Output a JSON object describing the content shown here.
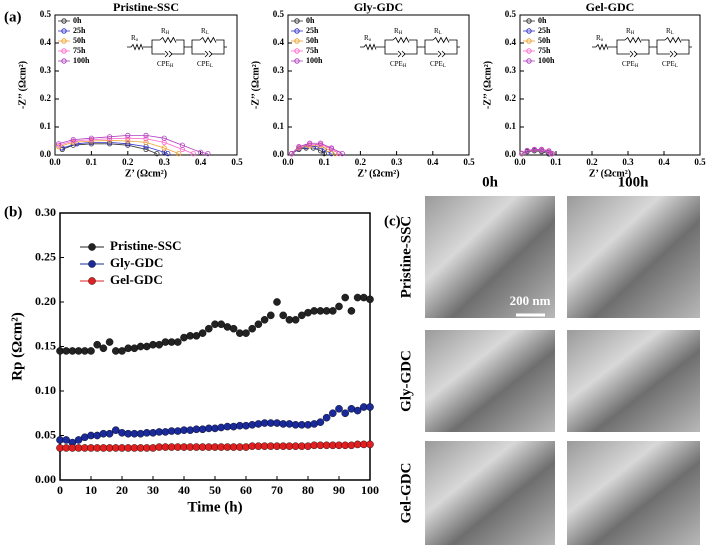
{
  "panel_labels": [
    "(a)",
    "(b)",
    "(c)"
  ],
  "circuit": {
    "labels": [
      {
        "main": "R",
        "sub": "o"
      },
      {
        "main": "R",
        "sub": "H"
      },
      {
        "main": "R",
        "sub": "L"
      },
      {
        "main": "CPE",
        "sub": "H"
      },
      {
        "main": "CPE",
        "sub": "L"
      }
    ]
  },
  "sem": {
    "columns": [
      "0h",
      "100h"
    ],
    "rows": [
      "Pristine-SSC",
      "Gly-GDC",
      "Gel-GDC"
    ],
    "scale_bar": "200 nm"
  },
  "chart_data": [
    {
      "type": "line",
      "title": "Pristine-SSC",
      "xlabel": "Z’ (Ωcm²)",
      "ylabel": "-Z’’ (Ωcm²)",
      "xlim": [
        0,
        0.5
      ],
      "xticks": [
        {
          "value": 0,
          "label": "0.0"
        },
        0.1,
        0.2,
        0.3,
        0.4,
        0.5
      ],
      "ylim": [
        0,
        0.5
      ],
      "yticks": [
        {
          "value": 0,
          "label": "0.0"
        },
        0.1,
        0.2,
        0.3,
        0.4,
        0.5
      ],
      "series": [
        {
          "name": "0h",
          "color": "#333333",
          "x": [
            0.02,
            0.05,
            0.1,
            0.15,
            0.2,
            0.25,
            0.28
          ],
          "values": [
            0.02,
            0.035,
            0.04,
            0.04,
            0.035,
            0.02,
            0.005
          ]
        },
        {
          "name": "25h",
          "color": "#3333cc",
          "x": [
            0.02,
            0.06,
            0.1,
            0.15,
            0.2,
            0.25,
            0.3,
            0.31
          ],
          "values": [
            0.025,
            0.04,
            0.045,
            0.045,
            0.04,
            0.03,
            0.01,
            0.005
          ]
        },
        {
          "name": "50h",
          "color": "#f0a030",
          "x": [
            0.01,
            0.05,
            0.1,
            0.15,
            0.2,
            0.25,
            0.3,
            0.34
          ],
          "values": [
            0.03,
            0.045,
            0.05,
            0.052,
            0.05,
            0.045,
            0.025,
            0.005
          ]
        },
        {
          "name": "75h",
          "color": "#ff66cc",
          "x": [
            0.01,
            0.05,
            0.1,
            0.15,
            0.2,
            0.25,
            0.3,
            0.35,
            0.38
          ],
          "values": [
            0.035,
            0.05,
            0.055,
            0.058,
            0.06,
            0.058,
            0.045,
            0.02,
            0.005
          ]
        },
        {
          "name": "100h",
          "color": "#b040c0",
          "x": [
            0.01,
            0.05,
            0.1,
            0.15,
            0.2,
            0.25,
            0.3,
            0.35,
            0.4,
            0.42
          ],
          "values": [
            0.04,
            0.055,
            0.06,
            0.065,
            0.07,
            0.07,
            0.06,
            0.035,
            0.01,
            0.005
          ]
        }
      ]
    },
    {
      "type": "line",
      "title": "Gly-GDC",
      "xlabel": "Z’ (Ωcm²)",
      "ylabel": "-Z’’ (Ωcm²)",
      "xlim": [
        0,
        0.5
      ],
      "xticks": [
        {
          "value": 0,
          "label": "0.0"
        },
        0.1,
        0.2,
        0.3,
        0.4,
        0.5
      ],
      "ylim": [
        0,
        0.5
      ],
      "yticks": [
        {
          "value": 0,
          "label": "0.0"
        },
        0.1,
        0.2,
        0.3,
        0.4,
        0.5
      ],
      "series": [
        {
          "name": "0h",
          "color": "#333333",
          "x": [
            0.01,
            0.03,
            0.05,
            0.07,
            0.09,
            0.1
          ],
          "values": [
            0.005,
            0.02,
            0.025,
            0.025,
            0.015,
            0.005
          ]
        },
        {
          "name": "25h",
          "color": "#3333cc",
          "x": [
            0.01,
            0.03,
            0.05,
            0.08,
            0.1,
            0.12
          ],
          "values": [
            0.005,
            0.022,
            0.03,
            0.03,
            0.018,
            0.005
          ]
        },
        {
          "name": "50h",
          "color": "#f0a030",
          "x": [
            0.01,
            0.03,
            0.06,
            0.09,
            0.11,
            0.13
          ],
          "values": [
            0.005,
            0.025,
            0.033,
            0.033,
            0.02,
            0.005
          ]
        },
        {
          "name": "75h",
          "color": "#ff66cc",
          "x": [
            0.01,
            0.03,
            0.06,
            0.09,
            0.12,
            0.14
          ],
          "values": [
            0.005,
            0.028,
            0.038,
            0.038,
            0.022,
            0.005
          ]
        },
        {
          "name": "100h",
          "color": "#b040c0",
          "x": [
            0.01,
            0.03,
            0.06,
            0.09,
            0.12,
            0.15
          ],
          "values": [
            0.005,
            0.03,
            0.042,
            0.042,
            0.025,
            0.005
          ]
        }
      ]
    },
    {
      "type": "line",
      "title": "Gel-GDC",
      "xlabel": "Z’ (Ωcm²)",
      "ylabel": "-Z’’ (Ωcm²)",
      "xlim": [
        0,
        0.5
      ],
      "xticks": [
        {
          "value": 0,
          "label": "0.0"
        },
        0.1,
        0.2,
        0.3,
        0.4,
        0.5
      ],
      "ylim": [
        0,
        0.5
      ],
      "yticks": [
        {
          "value": 0,
          "label": "0.0"
        },
        0.1,
        0.2,
        0.3,
        0.4,
        0.5
      ],
      "series": [
        {
          "name": "0h",
          "color": "#333333",
          "x": [
            0.005,
            0.02,
            0.04,
            0.06,
            0.08
          ],
          "values": [
            0.005,
            0.012,
            0.015,
            0.012,
            0.004
          ]
        },
        {
          "name": "25h",
          "color": "#3333cc",
          "x": [
            0.005,
            0.02,
            0.04,
            0.06,
            0.08,
            0.085
          ],
          "values": [
            0.005,
            0.014,
            0.017,
            0.015,
            0.01,
            0.004
          ]
        },
        {
          "name": "50h",
          "color": "#f0a030",
          "x": [
            0.005,
            0.02,
            0.04,
            0.06,
            0.08,
            0.087
          ],
          "values": [
            0.005,
            0.015,
            0.018,
            0.017,
            0.012,
            0.004
          ]
        },
        {
          "name": "75h",
          "color": "#ff66cc",
          "x": [
            0.005,
            0.02,
            0.04,
            0.06,
            0.08,
            0.088
          ],
          "values": [
            0.006,
            0.015,
            0.019,
            0.018,
            0.013,
            0.005
          ]
        },
        {
          "name": "100h",
          "color": "#b040c0",
          "x": [
            0.005,
            0.02,
            0.04,
            0.06,
            0.08,
            0.09
          ],
          "values": [
            0.006,
            0.016,
            0.02,
            0.02,
            0.015,
            0.005
          ]
        }
      ]
    },
    {
      "type": "scatter",
      "xlabel": "Time (h)",
      "ylabel": "Rp (Ωcm²)",
      "xlim": [
        0,
        100
      ],
      "xticks": [
        0,
        10,
        20,
        30,
        40,
        50,
        60,
        70,
        80,
        90,
        100
      ],
      "ylim": [
        0,
        0.3
      ],
      "yticks": [
        {
          "value": 0,
          "label": "0.00"
        },
        {
          "value": 0.05,
          "label": "0.05"
        },
        {
          "value": 0.1,
          "label": "0.10"
        },
        {
          "value": 0.15,
          "label": "0.15"
        },
        {
          "value": 0.2,
          "label": "0.20"
        },
        {
          "value": 0.25,
          "label": "0.25"
        },
        {
          "value": 0.3,
          "label": "0.30"
        }
      ],
      "x": [
        0,
        2,
        4,
        6,
        8,
        10,
        12,
        14,
        16,
        18,
        20,
        22,
        24,
        26,
        28,
        30,
        32,
        34,
        36,
        38,
        40,
        42,
        44,
        46,
        48,
        50,
        52,
        54,
        56,
        58,
        60,
        62,
        64,
        66,
        68,
        70,
        72,
        74,
        76,
        78,
        80,
        82,
        84,
        86,
        88,
        90,
        92,
        94,
        96,
        98,
        100
      ],
      "series": [
        {
          "name": "Pristine-SSC",
          "color": "#222222",
          "values": [
            0.145,
            0.145,
            0.145,
            0.145,
            0.145,
            0.145,
            0.152,
            0.148,
            0.155,
            0.145,
            0.145,
            0.148,
            0.148,
            0.15,
            0.15,
            0.152,
            0.152,
            0.155,
            0.155,
            0.155,
            0.16,
            0.162,
            0.162,
            0.165,
            0.17,
            0.175,
            0.175,
            0.172,
            0.17,
            0.165,
            0.165,
            0.17,
            0.175,
            0.18,
            0.185,
            0.2,
            0.185,
            0.18,
            0.18,
            0.185,
            0.188,
            0.19,
            0.19,
            0.19,
            0.19,
            0.195,
            0.205,
            0.19,
            0.205,
            0.205,
            0.203
          ]
        },
        {
          "name": "Gly-GDC",
          "color": "#1a2a9a",
          "values": [
            0.045,
            0.045,
            0.042,
            0.045,
            0.048,
            0.05,
            0.05,
            0.052,
            0.052,
            0.056,
            0.053,
            0.052,
            0.052,
            0.052,
            0.053,
            0.053,
            0.054,
            0.054,
            0.055,
            0.055,
            0.056,
            0.056,
            0.057,
            0.057,
            0.058,
            0.058,
            0.059,
            0.06,
            0.06,
            0.061,
            0.061,
            0.062,
            0.063,
            0.064,
            0.064,
            0.064,
            0.063,
            0.063,
            0.062,
            0.062,
            0.062,
            0.063,
            0.065,
            0.07,
            0.075,
            0.08,
            0.075,
            0.08,
            0.078,
            0.082,
            0.082
          ]
        },
        {
          "name": "Gel-GDC",
          "color": "#e02020",
          "values": [
            0.036,
            0.036,
            0.036,
            0.036,
            0.036,
            0.036,
            0.036,
            0.036,
            0.036,
            0.036,
            0.036,
            0.036,
            0.036,
            0.036,
            0.036,
            0.036,
            0.037,
            0.037,
            0.037,
            0.037,
            0.037,
            0.037,
            0.037,
            0.037,
            0.037,
            0.037,
            0.037,
            0.037,
            0.037,
            0.037,
            0.037,
            0.038,
            0.038,
            0.038,
            0.038,
            0.038,
            0.038,
            0.038,
            0.038,
            0.038,
            0.038,
            0.039,
            0.039,
            0.039,
            0.039,
            0.039,
            0.039,
            0.039,
            0.04,
            0.04,
            0.04
          ]
        }
      ]
    }
  ]
}
